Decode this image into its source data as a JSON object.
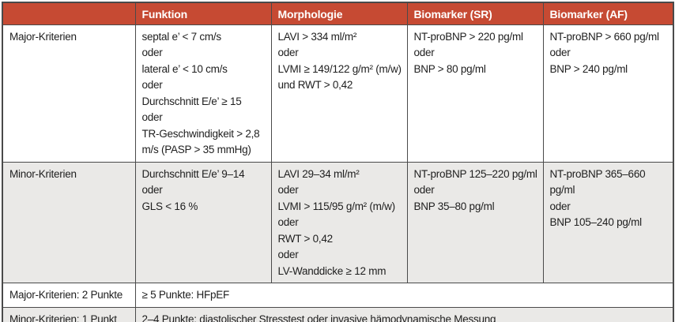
{
  "theme": {
    "header_bg": "#c64a33",
    "header_text": "#ffffff",
    "alt_row_bg": "#eae9e7",
    "grid_color": "#4a4a4a",
    "text_color": "#1e1e1e"
  },
  "header": {
    "col0": "",
    "col1": "Funktion",
    "col2": "Morphologie",
    "col3": "Biomarker (SR)",
    "col4": "Biomarker (AF)"
  },
  "major": {
    "label": "Major-Kriterien",
    "funktion": [
      "septal e’ < 7 cm/s",
      "oder",
      "lateral e’ < 10 cm/s",
      "oder",
      "Durchschnitt E/e’ ≥ 15",
      "oder",
      "TR-Geschwindigkeit > 2,8 m/s (PASP > 35 mmHg)"
    ],
    "morphologie": [
      "LAVI > 334 ml/m²",
      "oder",
      "LVMI ≥ 149/122 g/m² (m/w)",
      "und RWT > 0,42"
    ],
    "biomarker_sr": [
      "NT-proBNP > 220 pg/ml",
      "oder",
      "BNP > 80 pg/ml"
    ],
    "biomarker_af": [
      "NT-proBNP > 660 pg/ml",
      "oder",
      "BNP > 240 pg/ml"
    ]
  },
  "minor": {
    "label": "Minor-Kriterien",
    "funktion": [
      "Durchschnitt E/e’ 9–14",
      "oder",
      "GLS < 16 %"
    ],
    "morphologie": [
      "LAVI 29–34 ml/m²",
      "oder",
      "LVMI > 115/95 g/m² (m/w)",
      "oder",
      "RWT > 0,42",
      "oder",
      "LV-Wanddicke ≥ 12 mm"
    ],
    "biomarker_sr": [
      "NT-proBNP 125–220 pg/ml",
      "oder",
      "BNP 35–80 pg/ml"
    ],
    "biomarker_af": [
      "NT-proBNP 365–660 pg/ml",
      "oder",
      "BNP 105–240 pg/ml"
    ]
  },
  "scoring": {
    "major_label": "Major-Kriterien: 2 Punkte",
    "major_value": "≥ 5 Punkte: HFpEF",
    "minor_label": "Minor-Kriterien: 1 Punkt",
    "minor_value": "2–4 Punkte: diastolischer Stresstest oder invasive hämodynamische Messung"
  }
}
